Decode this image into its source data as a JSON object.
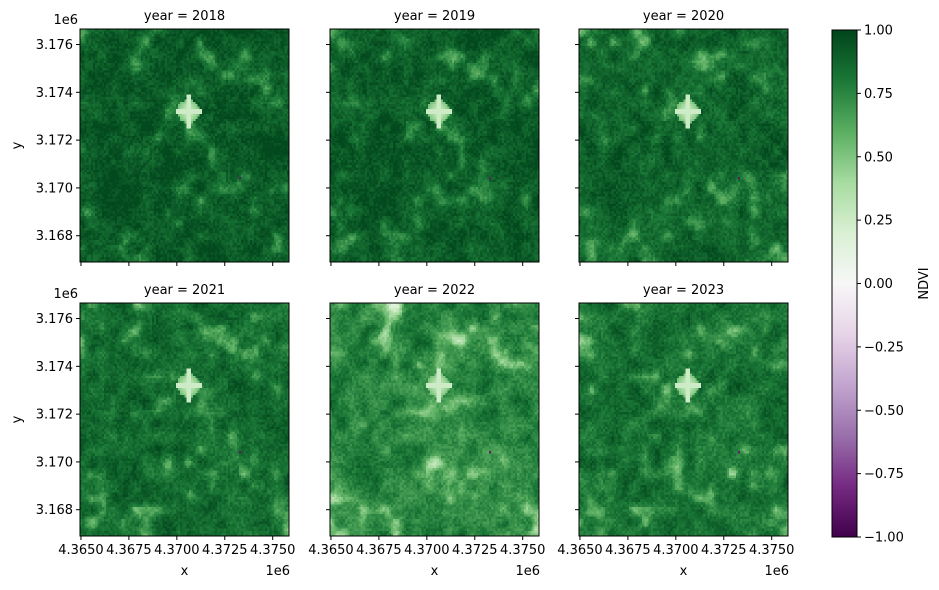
{
  "chart_data": {
    "type": "heatmap",
    "layout": "facet-grid 2x3",
    "facet_label_prefix": "year = ",
    "panels": [
      {
        "year": "2018",
        "title": "year = 2018",
        "mean_ndvi": 0.74
      },
      {
        "year": "2019",
        "title": "year = 2019",
        "mean_ndvi": 0.73
      },
      {
        "year": "2020",
        "title": "year = 2020",
        "mean_ndvi": 0.7
      },
      {
        "year": "2021",
        "title": "year = 2021",
        "mean_ndvi": 0.67
      },
      {
        "year": "2022",
        "title": "year = 2022",
        "mean_ndvi": 0.57
      },
      {
        "year": "2023",
        "title": "year = 2023",
        "mean_ndvi": 0.64
      }
    ],
    "xlabel": "x",
    "ylabel": "y",
    "x_offset_label": "1e6",
    "y_offset_label": "1e6",
    "xlim": [
      4.36495,
      4.37585
    ],
    "ylim": [
      3.1669,
      3.17665
    ],
    "x_ticks": [
      4.365,
      4.3675,
      4.37,
      4.3725,
      4.375
    ],
    "x_tick_labels": [
      "4.3650",
      "4.3675",
      "4.3700",
      "4.3725",
      "4.3750"
    ],
    "y_ticks": [
      3.168,
      3.17,
      3.172,
      3.174,
      3.176
    ],
    "y_tick_labels": [
      "3.168",
      "3.170",
      "3.172",
      "3.174",
      "3.176"
    ],
    "features": {
      "hotspot": {
        "x": 4.37055,
        "y": 3.17325
      },
      "dark_pixel": {
        "x": 4.37335,
        "y": 3.17038
      }
    },
    "colorbar": {
      "label": "NDVI",
      "colormap": "PRGn",
      "range": [
        -1.0,
        1.0
      ],
      "ticks": [
        1.0,
        0.75,
        0.5,
        0.25,
        0.0,
        -0.25,
        -0.5,
        -0.75,
        -1.0
      ],
      "tick_labels": [
        "1.00",
        "0.75",
        "0.50",
        "0.25",
        "0.00",
        "−0.25",
        "−0.50",
        "−0.75",
        "−1.00"
      ],
      "colors": [
        "#40004b",
        "#762a83",
        "#9970ab",
        "#c2a5cf",
        "#e7d4e8",
        "#f7f7f7",
        "#d9f0d3",
        "#a6dba0",
        "#5aae61",
        "#1b7837",
        "#00441b"
      ]
    },
    "grid": false
  }
}
